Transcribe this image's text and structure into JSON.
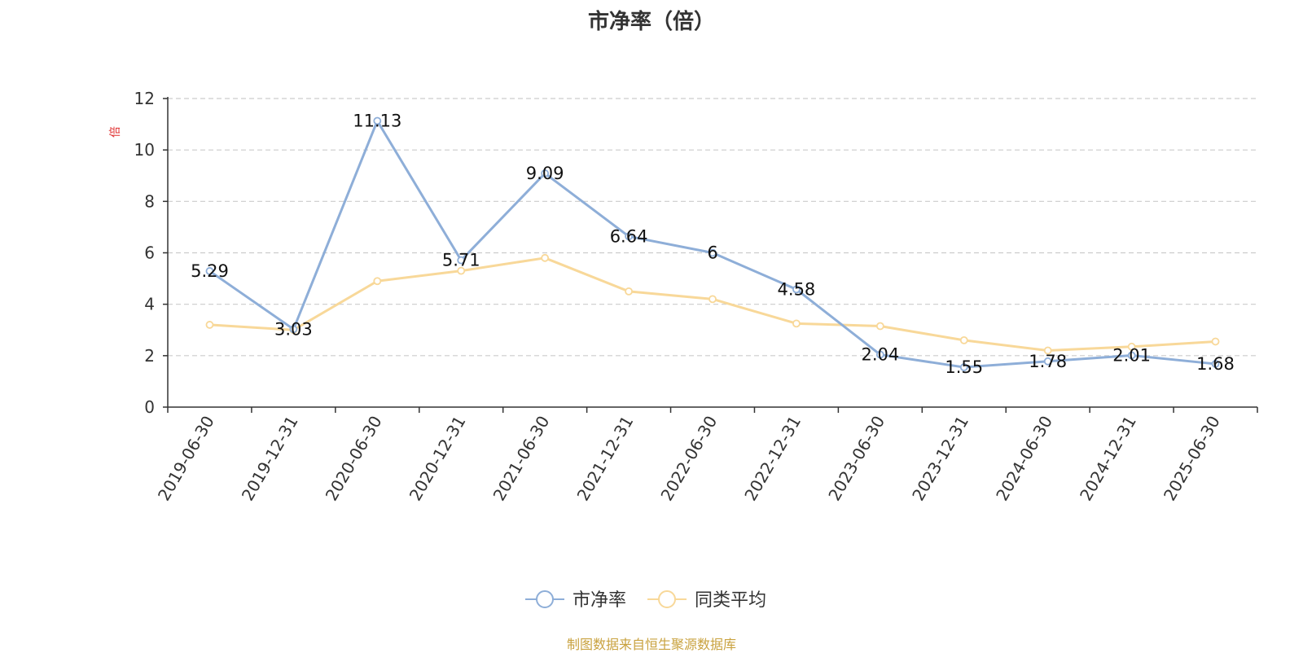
{
  "chart_data": {
    "type": "line",
    "title": "市净率（倍）",
    "ylabel": "倍",
    "xlabel": "",
    "categories": [
      "2019-06-30",
      "2019-12-31",
      "2020-06-30",
      "2020-12-31",
      "2021-06-30",
      "2021-12-31",
      "2022-06-30",
      "2022-12-31",
      "2023-06-30",
      "2023-12-31",
      "2024-06-30",
      "2024-12-31",
      "2025-06-30"
    ],
    "yticks": [
      "0",
      "2",
      "4",
      "6",
      "8",
      "10",
      "12"
    ],
    "ylim": [
      0,
      12
    ],
    "grid": true,
    "legend_position": "bottom",
    "series": [
      {
        "name": "市净率",
        "color": "#8eaed8",
        "values": [
          5.29,
          3.03,
          11.13,
          5.71,
          9.09,
          6.64,
          6,
          4.58,
          2.04,
          1.55,
          1.78,
          2.01,
          1.68
        ],
        "labels": [
          "5.29",
          "3.03",
          "11.13",
          "5.71",
          "9.09",
          "6.64",
          "6",
          "4.58",
          "2.04",
          "1.55",
          "1.78",
          "2.01",
          "1.68"
        ]
      },
      {
        "name": "同类平均",
        "color": "#f8d899",
        "values": [
          3.2,
          3.0,
          4.9,
          5.3,
          5.8,
          4.5,
          4.2,
          3.25,
          3.15,
          2.6,
          2.2,
          2.35,
          2.55
        ]
      }
    ]
  },
  "footer": {
    "text": "制图数据来自恒生聚源数据库",
    "color": "#c9a23f"
  },
  "colors": {
    "axis": "#333333",
    "grid": "#cccccc",
    "ylabel": "#e03030"
  }
}
